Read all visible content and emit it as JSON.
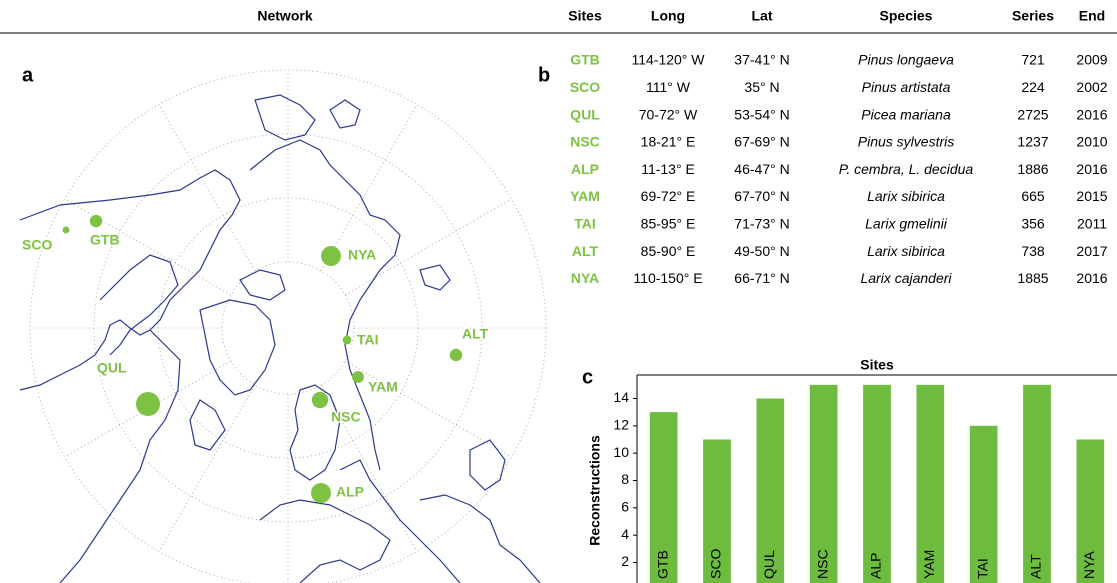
{
  "header": {
    "network": "Network"
  },
  "panels": {
    "a": "a",
    "b": "b",
    "c": "c"
  },
  "table": {
    "columns": [
      "Sites",
      "Long",
      "Lat",
      "Species",
      "Series",
      "End"
    ],
    "rows": [
      [
        "GTB",
        "114-120° W",
        "37-41° N",
        "Pinus longaeva",
        721,
        2009
      ],
      [
        "SCO",
        "111° W",
        "35° N",
        "Pinus artistata",
        224,
        2002
      ],
      [
        "QUL",
        "70-72° W",
        "53-54° N",
        "Picea mariana",
        2725,
        2016
      ],
      [
        "NSC",
        "18-21° E",
        "67-69° N",
        "Pinus sylvestris",
        1237,
        2010
      ],
      [
        "ALP",
        "11-13° E",
        "46-47° N",
        "P. cembra, L. decidua",
        1886,
        2016
      ],
      [
        "YAM",
        "69-72° E",
        "67-70° N",
        "Larix sibirica",
        665,
        2015
      ],
      [
        "TAI",
        "85-95° E",
        "71-73° N",
        "Larix gmelinii",
        356,
        2011
      ],
      [
        "ALT",
        "85-90° E",
        "49-50° N",
        "Larix sibirica",
        738,
        2017
      ],
      [
        "NYA",
        "110-150° E",
        "66-71° N",
        "Larix cajanderi",
        1885,
        2016
      ]
    ]
  },
  "chart_data": {
    "type": "bar",
    "title": "Sites",
    "y_label": "Reconstructions",
    "categories": [
      "GTB",
      "SCO",
      "QUL",
      "NSC",
      "ALP",
      "YAM",
      "TAI",
      "ALT",
      "NYA"
    ],
    "values": [
      13,
      11,
      14,
      15,
      15,
      15,
      12,
      15,
      11
    ],
    "color": "#6dbb3f",
    "ylim": [
      0.5,
      15.5
    ],
    "yticks": [
      2,
      4,
      6,
      8,
      10,
      12,
      14
    ],
    "grid": false
  }
}
